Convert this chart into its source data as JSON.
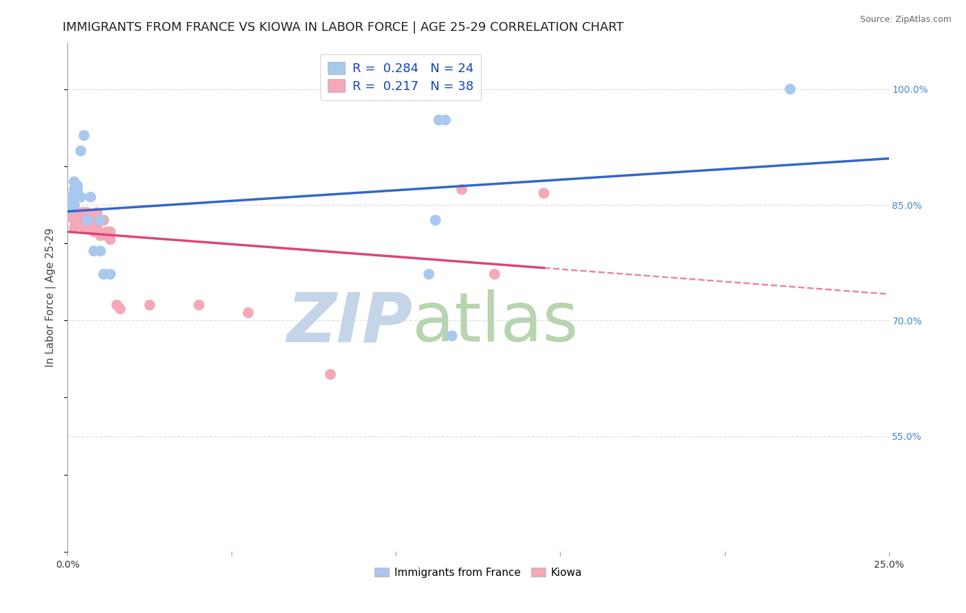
{
  "title": "IMMIGRANTS FROM FRANCE VS KIOWA IN LABOR FORCE | AGE 25-29 CORRELATION CHART",
  "source": "Source: ZipAtlas.com",
  "ylabel": "In Labor Force | Age 25-29",
  "xlim": [
    0.0,
    0.25
  ],
  "ylim": [
    0.4,
    1.06
  ],
  "ytick_positions": [
    0.55,
    0.7,
    0.85,
    1.0
  ],
  "ytick_labels": [
    "55.0%",
    "70.0%",
    "85.0%",
    "100.0%"
  ],
  "france_x": [
    0.001,
    0.001,
    0.001,
    0.002,
    0.002,
    0.002,
    0.003,
    0.003,
    0.004,
    0.004,
    0.005,
    0.006,
    0.007,
    0.008,
    0.01,
    0.01,
    0.011,
    0.013,
    0.11,
    0.112,
    0.113,
    0.115,
    0.117,
    0.22
  ],
  "france_y": [
    0.845,
    0.855,
    0.86,
    0.87,
    0.88,
    0.85,
    0.875,
    0.87,
    0.86,
    0.92,
    0.94,
    0.83,
    0.86,
    0.79,
    0.83,
    0.79,
    0.76,
    0.76,
    0.76,
    0.83,
    0.96,
    0.96,
    0.68,
    1.0
  ],
  "kiowa_x": [
    0.001,
    0.001,
    0.002,
    0.002,
    0.003,
    0.003,
    0.003,
    0.004,
    0.004,
    0.005,
    0.005,
    0.005,
    0.006,
    0.006,
    0.006,
    0.007,
    0.007,
    0.008,
    0.008,
    0.008,
    0.009,
    0.009,
    0.01,
    0.01,
    0.011,
    0.012,
    0.012,
    0.013,
    0.013,
    0.015,
    0.016,
    0.025,
    0.04,
    0.055,
    0.08,
    0.12,
    0.13,
    0.145
  ],
  "kiowa_y": [
    0.84,
    0.835,
    0.83,
    0.82,
    0.84,
    0.83,
    0.84,
    0.84,
    0.83,
    0.84,
    0.835,
    0.82,
    0.83,
    0.84,
    0.83,
    0.83,
    0.82,
    0.83,
    0.825,
    0.815,
    0.84,
    0.82,
    0.83,
    0.81,
    0.83,
    0.815,
    0.81,
    0.815,
    0.805,
    0.72,
    0.715,
    0.72,
    0.72,
    0.71,
    0.63,
    0.87,
    0.76,
    0.865
  ],
  "france_R": 0.284,
  "france_N": 24,
  "kiowa_R": 0.217,
  "kiowa_N": 38,
  "france_color": "#A8C8F0",
  "kiowa_color": "#F4A8B8",
  "france_line_color": "#3366CC",
  "kiowa_line_color": "#DD4477",
  "background_color": "#FFFFFF",
  "grid_color": "#DDDDDD",
  "watermark_zip": "ZIP",
  "watermark_atlas": "atlas",
  "watermark_color_zip": "#C5D5E8",
  "watermark_color_atlas": "#B8D4B0",
  "title_fontsize": 13,
  "axis_label_fontsize": 11,
  "tick_fontsize": 10,
  "legend_fontsize": 13
}
